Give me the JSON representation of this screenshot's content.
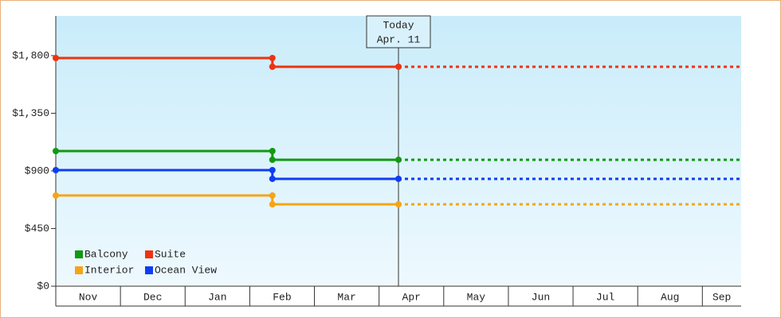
{
  "chart_data": {
    "type": "step-line",
    "x": [
      0,
      3.35,
      3.35,
      5.3
    ],
    "xlim": [
      0,
      10.6
    ],
    "xticks": [
      {
        "value": 0,
        "label": "Nov"
      },
      {
        "value": 1,
        "label": "Dec"
      },
      {
        "value": 2,
        "label": "Jan"
      },
      {
        "value": 3,
        "label": "Feb"
      },
      {
        "value": 4,
        "label": "Mar"
      },
      {
        "value": 5,
        "label": "Apr"
      },
      {
        "value": 6,
        "label": "May"
      },
      {
        "value": 7,
        "label": "Jun"
      },
      {
        "value": 8,
        "label": "Jul"
      },
      {
        "value": 9,
        "label": "Aug"
      },
      {
        "value": 10,
        "label": "Sep"
      }
    ],
    "ylim": [
      0,
      2110
    ],
    "yticks": [
      {
        "value": 0,
        "label": "$0"
      },
      {
        "value": 450,
        "label": "$450"
      },
      {
        "value": 900,
        "label": "$900"
      },
      {
        "value": 1350,
        "label": "$1,350"
      },
      {
        "value": 1800,
        "label": "$1,800"
      }
    ],
    "annotation": {
      "x": 5.3,
      "lines": [
        "Today",
        "Apr. 11"
      ]
    },
    "series": [
      {
        "name": "Balcony",
        "color": "#119911",
        "values": [
          1055,
          1055,
          987,
          987
        ]
      },
      {
        "name": "Suite",
        "color": "#ee3311",
        "values": [
          1781,
          1781,
          1713,
          1713
        ]
      },
      {
        "name": "Interior",
        "color": "#f5a514",
        "values": [
          708,
          708,
          639,
          639
        ]
      },
      {
        "name": "Ocean View",
        "color": "#0f3cf5",
        "values": [
          906,
          906,
          838,
          838
        ]
      }
    ]
  }
}
